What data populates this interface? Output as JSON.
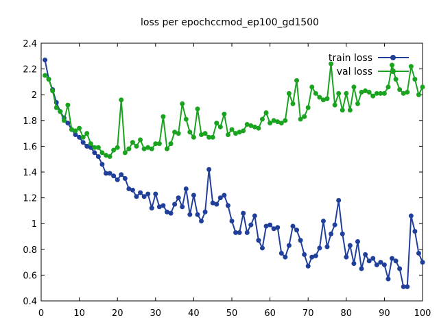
{
  "chart_data": {
    "type": "line",
    "title": "loss per epochccmod_ep100_gd1500",
    "xlabel": "",
    "ylabel": "",
    "xlim": [
      0,
      100
    ],
    "ylim": [
      0.4,
      2.4
    ],
    "xticks": [
      0,
      10,
      20,
      30,
      40,
      50,
      60,
      70,
      80,
      90,
      100
    ],
    "yticks": [
      0.4,
      0.6,
      0.8,
      1,
      1.2,
      1.4,
      1.6,
      1.8,
      2,
      2.2,
      2.4
    ],
    "xtick_labels": [
      "0",
      "10",
      "20",
      "30",
      "40",
      "50",
      "60",
      "70",
      "80",
      "90",
      "100"
    ],
    "ytick_labels": [
      "0.4",
      "0.6",
      "0.8",
      "1",
      "1.2",
      "1.4",
      "1.6",
      "1.8",
      "2",
      "2.2",
      "2.4"
    ],
    "grid": false,
    "legend_position": "top-right",
    "series": [
      {
        "name": "train loss",
        "color": "#1f3f9a",
        "marker": "circle",
        "points": [
          [
            1,
            2.27
          ],
          [
            2,
            2.12
          ],
          [
            3,
            2.04
          ],
          [
            4,
            1.94
          ],
          [
            5,
            1.87
          ],
          [
            6,
            1.82
          ],
          [
            7,
            1.78
          ],
          [
            8,
            1.73
          ],
          [
            9,
            1.69
          ],
          [
            10,
            1.67
          ],
          [
            11,
            1.63
          ],
          [
            12,
            1.6
          ],
          [
            13,
            1.59
          ],
          [
            14,
            1.55
          ],
          [
            15,
            1.52
          ],
          [
            16,
            1.46
          ],
          [
            17,
            1.39
          ],
          [
            18,
            1.39
          ],
          [
            19,
            1.37
          ],
          [
            20,
            1.34
          ],
          [
            21,
            1.38
          ],
          [
            22,
            1.35
          ],
          [
            23,
            1.27
          ],
          [
            24,
            1.26
          ],
          [
            25,
            1.21
          ],
          [
            26,
            1.24
          ],
          [
            27,
            1.21
          ],
          [
            28,
            1.23
          ],
          [
            29,
            1.12
          ],
          [
            30,
            1.23
          ],
          [
            31,
            1.13
          ],
          [
            32,
            1.14
          ],
          [
            33,
            1.09
          ],
          [
            34,
            1.08
          ],
          [
            35,
            1.15
          ],
          [
            36,
            1.2
          ],
          [
            37,
            1.13
          ],
          [
            38,
            1.27
          ],
          [
            39,
            1.07
          ],
          [
            40,
            1.22
          ],
          [
            41,
            1.07
          ],
          [
            42,
            1.02
          ],
          [
            43,
            1.09
          ],
          [
            44,
            1.42
          ],
          [
            45,
            1.16
          ],
          [
            46,
            1.15
          ],
          [
            47,
            1.2
          ],
          [
            48,
            1.22
          ],
          [
            49,
            1.14
          ],
          [
            50,
            1.02
          ],
          [
            51,
            0.93
          ],
          [
            52,
            0.93
          ],
          [
            53,
            1.08
          ],
          [
            54,
            0.93
          ],
          [
            55,
            0.99
          ],
          [
            56,
            1.06
          ],
          [
            57,
            0.87
          ],
          [
            58,
            0.81
          ],
          [
            59,
            0.98
          ],
          [
            60,
            0.99
          ],
          [
            61,
            0.96
          ],
          [
            62,
            0.97
          ],
          [
            63,
            0.77
          ],
          [
            64,
            0.74
          ],
          [
            65,
            0.83
          ],
          [
            66,
            0.98
          ],
          [
            67,
            0.95
          ],
          [
            68,
            0.87
          ],
          [
            69,
            0.76
          ],
          [
            70,
            0.67
          ],
          [
            71,
            0.74
          ],
          [
            72,
            0.75
          ],
          [
            73,
            0.81
          ],
          [
            74,
            1.02
          ],
          [
            75,
            0.82
          ],
          [
            76,
            0.92
          ],
          [
            77,
            0.99
          ],
          [
            78,
            1.18
          ],
          [
            79,
            0.92
          ],
          [
            80,
            0.74
          ],
          [
            81,
            0.83
          ],
          [
            82,
            0.69
          ],
          [
            83,
            0.86
          ],
          [
            84,
            0.65
          ],
          [
            85,
            0.76
          ],
          [
            86,
            0.71
          ],
          [
            87,
            0.73
          ],
          [
            88,
            0.68
          ],
          [
            89,
            0.7
          ],
          [
            90,
            0.68
          ],
          [
            91,
            0.57
          ],
          [
            92,
            0.73
          ],
          [
            93,
            0.71
          ],
          [
            94,
            0.65
          ],
          [
            95,
            0.51
          ],
          [
            96,
            0.51
          ],
          [
            97,
            1.06
          ],
          [
            98,
            0.94
          ],
          [
            99,
            0.77
          ],
          [
            100,
            0.7
          ]
        ]
      },
      {
        "name": "val loss",
        "color": "#19a31f",
        "marker": "circle",
        "points": [
          [
            1,
            2.15
          ],
          [
            2,
            2.12
          ],
          [
            3,
            2.03
          ],
          [
            4,
            1.9
          ],
          [
            5,
            1.87
          ],
          [
            6,
            1.8
          ],
          [
            7,
            1.92
          ],
          [
            8,
            1.73
          ],
          [
            9,
            1.72
          ],
          [
            10,
            1.74
          ],
          [
            11,
            1.67
          ],
          [
            12,
            1.7
          ],
          [
            13,
            1.62
          ],
          [
            14,
            1.59
          ],
          [
            15,
            1.59
          ],
          [
            16,
            1.55
          ],
          [
            17,
            1.53
          ],
          [
            18,
            1.52
          ],
          [
            19,
            1.57
          ],
          [
            20,
            1.59
          ],
          [
            21,
            1.96
          ],
          [
            22,
            1.55
          ],
          [
            23,
            1.58
          ],
          [
            24,
            1.63
          ],
          [
            25,
            1.6
          ],
          [
            26,
            1.65
          ],
          [
            27,
            1.58
          ],
          [
            28,
            1.59
          ],
          [
            29,
            1.58
          ],
          [
            30,
            1.62
          ],
          [
            31,
            1.62
          ],
          [
            32,
            1.83
          ],
          [
            33,
            1.58
          ],
          [
            34,
            1.62
          ],
          [
            35,
            1.71
          ],
          [
            36,
            1.7
          ],
          [
            37,
            1.93
          ],
          [
            38,
            1.81
          ],
          [
            39,
            1.71
          ],
          [
            40,
            1.67
          ],
          [
            41,
            1.89
          ],
          [
            42,
            1.69
          ],
          [
            43,
            1.7
          ],
          [
            44,
            1.67
          ],
          [
            45,
            1.67
          ],
          [
            46,
            1.78
          ],
          [
            47,
            1.75
          ],
          [
            48,
            1.85
          ],
          [
            49,
            1.69
          ],
          [
            50,
            1.73
          ],
          [
            51,
            1.7
          ],
          [
            52,
            1.71
          ],
          [
            53,
            1.72
          ],
          [
            54,
            1.77
          ],
          [
            55,
            1.76
          ],
          [
            56,
            1.75
          ],
          [
            57,
            1.74
          ],
          [
            58,
            1.81
          ],
          [
            59,
            1.86
          ],
          [
            60,
            1.78
          ],
          [
            61,
            1.8
          ],
          [
            62,
            1.79
          ],
          [
            63,
            1.78
          ],
          [
            64,
            1.8
          ],
          [
            65,
            2.01
          ],
          [
            66,
            1.93
          ],
          [
            67,
            2.11
          ],
          [
            68,
            1.81
          ],
          [
            69,
            1.83
          ],
          [
            70,
            1.9
          ],
          [
            71,
            2.06
          ],
          [
            72,
            2.01
          ],
          [
            73,
            1.98
          ],
          [
            74,
            1.96
          ],
          [
            75,
            1.97
          ],
          [
            76,
            2.24
          ],
          [
            77,
            1.92
          ],
          [
            78,
            2.01
          ],
          [
            79,
            1.88
          ],
          [
            80,
            2.01
          ],
          [
            81,
            1.88
          ],
          [
            82,
            2.06
          ],
          [
            83,
            1.93
          ],
          [
            84,
            2.02
          ],
          [
            85,
            2.03
          ],
          [
            86,
            2.02
          ],
          [
            87,
            1.99
          ],
          [
            88,
            2.01
          ],
          [
            89,
            2.01
          ],
          [
            90,
            2.01
          ],
          [
            91,
            2.06
          ],
          [
            92,
            2.23
          ],
          [
            93,
            2.12
          ],
          [
            94,
            2.04
          ],
          [
            95,
            2.01
          ],
          [
            96,
            2.02
          ],
          [
            97,
            2.22
          ],
          [
            98,
            2.12
          ],
          [
            99,
            2.0
          ],
          [
            100,
            2.06
          ]
        ]
      }
    ]
  }
}
